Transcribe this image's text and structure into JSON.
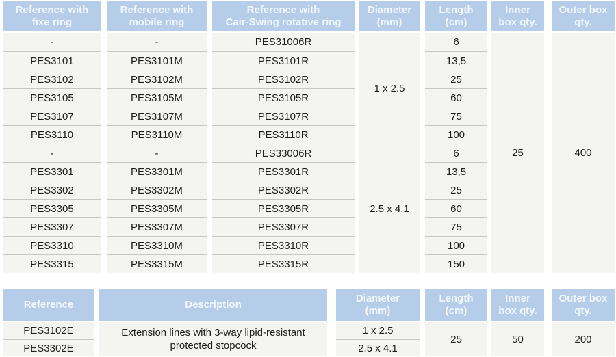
{
  "colors": {
    "header_bg": "#b5cde9",
    "header_text": "#f2f7fc",
    "row_bg": "#f4f4f1",
    "row_divider": "#c6c6c3",
    "cell_text": "#1e1e1e",
    "page_bg": "#ffffff"
  },
  "main_table": {
    "headers": {
      "fixe": "Reference with\nfixe ring",
      "mobile": "Reference with\nmobile ring",
      "rotative": "Reference with\nCair-Swing rotative ring",
      "diameter": "Diameter\n(mm)",
      "length": "Length\n(cm)",
      "inner": "Inner\nbox qty.",
      "outer": "Outer box\nqty."
    },
    "fixe_refs": [
      "-",
      "PES3101",
      "PES3102",
      "PES3105",
      "PES3107",
      "PES3110",
      "-",
      "PES3301",
      "PES3302",
      "PES3305",
      "PES3307",
      "PES3310",
      "PES3315"
    ],
    "mobile_refs": [
      "-",
      "PES3101M",
      "PES3102M",
      "PES3105M",
      "PES3107M",
      "PES3110M",
      "-",
      "PES3301M",
      "PES3302M",
      "PES3305M",
      "PES3307M",
      "PES3310M",
      "PES3315M"
    ],
    "rotative_refs": [
      "PES31006R",
      "PES3101R",
      "PES3102R",
      "PES3105R",
      "PES3107R",
      "PES3110R",
      "PES33006R",
      "PES3301R",
      "PES3302R",
      "PES3305R",
      "PES3307R",
      "PES3310R",
      "PES3315R"
    ],
    "diameter_groups": [
      "1 x 2.5",
      "2.5 x 4.1"
    ],
    "lengths": [
      "6",
      "13,5",
      "25",
      "60",
      "75",
      "100",
      "6",
      "13,5",
      "25",
      "60",
      "75",
      "100",
      "150"
    ],
    "inner_box_qty": "25",
    "outer_box_qty": "400"
  },
  "extension_table": {
    "headers": {
      "reference": "Reference",
      "description": "Description",
      "diameter": "Diameter\n(mm)",
      "length": "Length\n(cm)",
      "inner": "Inner\nbox qty.",
      "outer": "Outer box\nqty."
    },
    "references": [
      "PES3102E",
      "PES3302E"
    ],
    "description": "Extension lines with 3-way lipid-resistant protected stopcock",
    "diameters": [
      "1 x 2.5",
      "2.5 x 4.1"
    ],
    "length": "25",
    "inner_box_qty": "50",
    "outer_box_qty": "200"
  }
}
